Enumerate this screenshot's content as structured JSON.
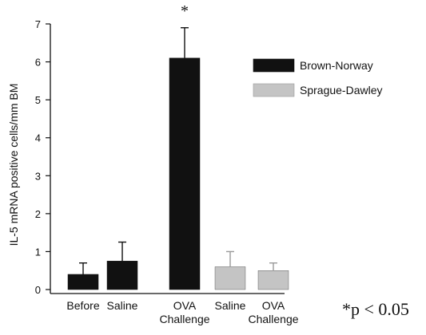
{
  "chart_data": {
    "type": "bar",
    "ylabel": "IL-5 mRNA positive cells/mm BM",
    "xlabel": "",
    "ylim": [
      0,
      7
    ],
    "yticks": [
      0,
      1,
      2,
      3,
      4,
      5,
      6,
      7
    ],
    "groups": [
      {
        "name": "Brown-Norway",
        "color": "#111111",
        "categories": [
          "Before",
          "Saline",
          "OVA Challenge"
        ],
        "values": [
          0.4,
          0.75,
          6.1
        ],
        "errors": [
          0.3,
          0.5,
          0.8
        ]
      },
      {
        "name": "Sprague-Dawley",
        "color": "#c4c4c4",
        "categories": [
          "Saline",
          "OVA Challenge"
        ],
        "values": [
          0.6,
          0.5
        ],
        "errors": [
          0.4,
          0.2
        ]
      }
    ],
    "legend": [
      {
        "label": "Brown-Norway",
        "color": "#111111"
      },
      {
        "label": "Sprague-Dawley",
        "color": "#c4c4c4"
      }
    ],
    "significance_marker": "*",
    "significance_category": "OVA Challenge (Brown-Norway)",
    "legend_position": "right",
    "grid": false
  },
  "footnote": "*p < 0.05"
}
